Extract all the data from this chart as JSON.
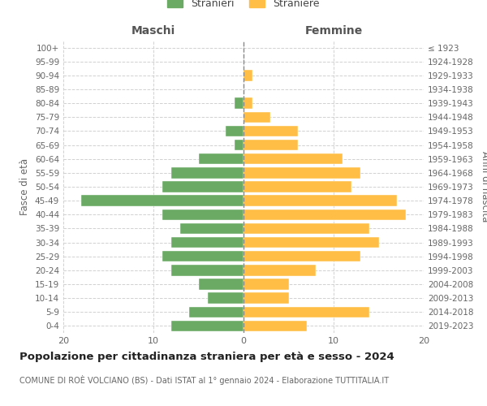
{
  "age_groups": [
    "100+",
    "95-99",
    "90-94",
    "85-89",
    "80-84",
    "75-79",
    "70-74",
    "65-69",
    "60-64",
    "55-59",
    "50-54",
    "45-49",
    "40-44",
    "35-39",
    "30-34",
    "25-29",
    "20-24",
    "15-19",
    "10-14",
    "5-9",
    "0-4"
  ],
  "birth_years": [
    "≤ 1923",
    "1924-1928",
    "1929-1933",
    "1934-1938",
    "1939-1943",
    "1944-1948",
    "1949-1953",
    "1954-1958",
    "1959-1963",
    "1964-1968",
    "1969-1973",
    "1974-1978",
    "1979-1983",
    "1984-1988",
    "1989-1993",
    "1994-1998",
    "1999-2003",
    "2004-2008",
    "2009-2013",
    "2014-2018",
    "2019-2023"
  ],
  "maschi": [
    0,
    0,
    0,
    0,
    1,
    0,
    2,
    1,
    5,
    8,
    9,
    18,
    9,
    7,
    8,
    9,
    8,
    5,
    4,
    6,
    8
  ],
  "femmine": [
    0,
    0,
    1,
    0,
    1,
    3,
    6,
    6,
    11,
    13,
    12,
    17,
    18,
    14,
    15,
    13,
    8,
    5,
    5,
    14,
    7
  ],
  "male_color": "#6aaa64",
  "female_color": "#ffbf47",
  "title_main": "Popolazione per cittadinanza straniera per età e sesso - 2024",
  "title_sub": "COMUNE DI ROÈ VOLCIANO (BS) - Dati ISTAT al 1° gennaio 2024 - Elaborazione TUTTITALIA.IT",
  "ylabel_left": "Fasce di età",
  "ylabel_right": "Anni di nascita",
  "legend_male": "Stranieri",
  "legend_female": "Straniere",
  "xlim": 20,
  "background_color": "#ffffff",
  "grid_color": "#cccccc",
  "maschi_header": "Maschi",
  "femmine_header": "Femmine"
}
